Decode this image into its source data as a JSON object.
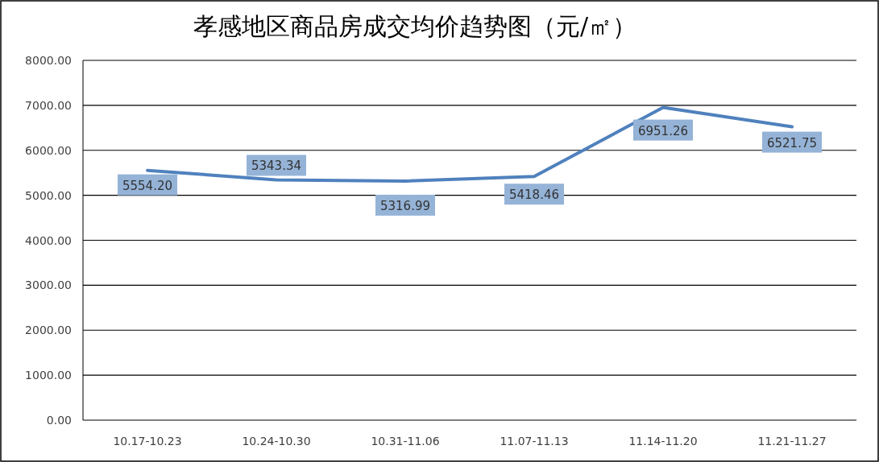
{
  "chart_data": {
    "type": "line",
    "title": "孝感地区商品房成交均价趋势图（元/㎡）",
    "categories": [
      "10.17-10.23",
      "10.24-10.30",
      "10.31-11.06",
      "11.07-11.13",
      "11.14-11.20",
      "11.21-11.27"
    ],
    "series": [
      {
        "color": "#4f81bd",
        "values": [
          5554.2,
          5343.34,
          5316.99,
          5418.46,
          6951.26,
          6521.75
        ],
        "value_labels": [
          "5554.20",
          "5343.34",
          "5316.99",
          "5418.46",
          "6951.26",
          "6521.75"
        ]
      }
    ],
    "ylim": [
      0,
      8000
    ],
    "yticks": [
      {
        "value": 0,
        "label": "0.00"
      },
      {
        "value": 1000,
        "label": "1000.00"
      },
      {
        "value": 2000,
        "label": "2000.00"
      },
      {
        "value": 3000,
        "label": "3000.00"
      },
      {
        "value": 4000,
        "label": "4000.00"
      },
      {
        "value": 5000,
        "label": "5000.00"
      },
      {
        "value": 6000,
        "label": "6000.00"
      },
      {
        "value": 7000,
        "label": "7000.00"
      },
      {
        "value": 8000,
        "label": "8000.00"
      }
    ],
    "grid": "y",
    "marker": "none",
    "line_style": "solid"
  }
}
